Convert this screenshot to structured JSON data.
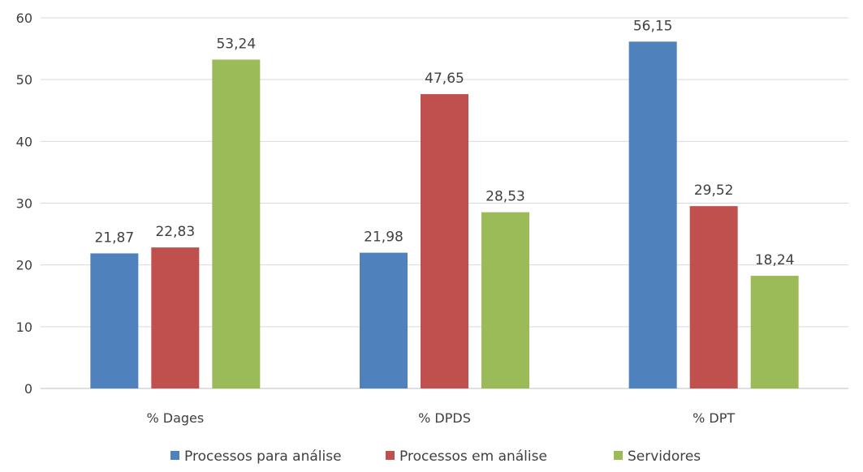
{
  "chart_data": {
    "type": "bar",
    "categories": [
      "% Dages",
      "% DPDS",
      "% DPT"
    ],
    "series": [
      {
        "name": "Processos para análise",
        "color": "#4f81bd",
        "values": [
          21.87,
          21.98,
          56.15
        ],
        "labels": [
          "21,87",
          "21,98",
          "56,15"
        ]
      },
      {
        "name": "Processos em análise",
        "color": "#c0504d",
        "values": [
          22.83,
          47.65,
          29.52
        ],
        "labels": [
          "22,83",
          "47,65",
          "29,52"
        ]
      },
      {
        "name": "Servidores",
        "color": "#9bbb59",
        "values": [
          53.24,
          28.53,
          18.24
        ],
        "labels": [
          "53,24",
          "28,53",
          "18,24"
        ]
      }
    ],
    "ylim": [
      0,
      60
    ],
    "yticks": [
      0,
      10,
      20,
      30,
      40,
      50,
      60
    ],
    "grid": true,
    "legend_position": "bottom",
    "title": "",
    "xlabel": "",
    "ylabel": ""
  }
}
